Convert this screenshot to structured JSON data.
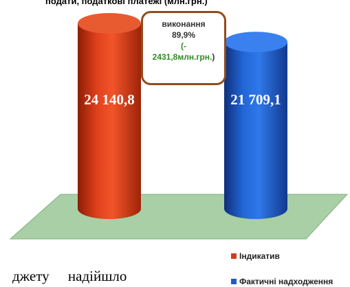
{
  "chart_data": {
    "type": "bar",
    "title": "",
    "title_fragment": "подати, податкові платежі (млн.грн.)",
    "categories": [
      "Індикатив",
      "Фактичні надходження"
    ],
    "values": [
      24140.8,
      21709.1
    ],
    "value_labels": [
      "24 140,8",
      "21 709,1"
    ],
    "colors": [
      "#d63a1a",
      "#1f5cc8"
    ],
    "legend": {
      "position": "bottom-right",
      "items": [
        {
          "label": "Індикатив",
          "color": "#d63a1a"
        },
        {
          "label": "Фактичні надходження",
          "color": "#1f5cc8"
        }
      ]
    },
    "annotation": {
      "line1": "виконання",
      "line2": "89,9%",
      "line3": "(-",
      "line4": "2431,8млн.грн.",
      "line4_suffix": ")"
    }
  },
  "page_text": {
    "bottom_fragment": "джету надійшло"
  }
}
